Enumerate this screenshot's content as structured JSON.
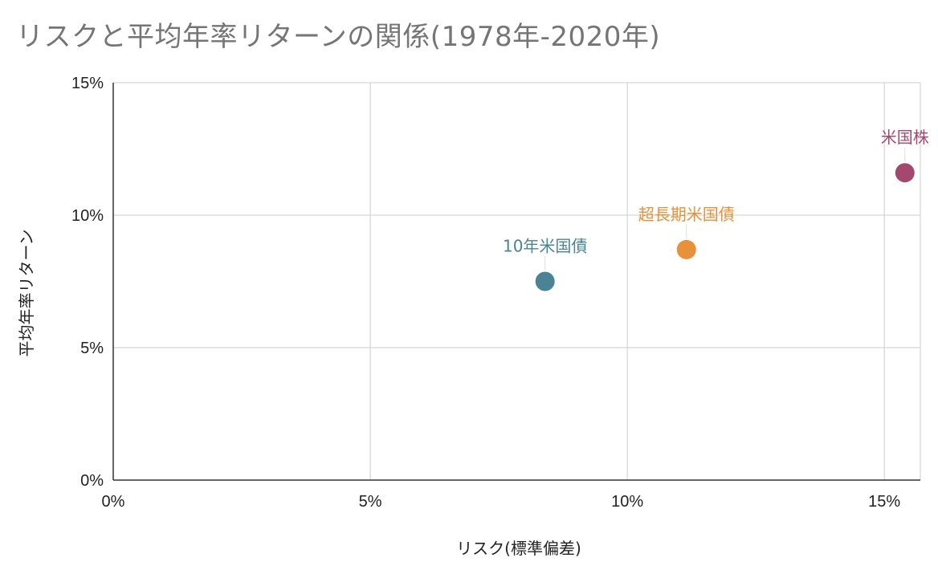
{
  "chart_data": {
    "type": "scatter",
    "title": "リスクと平均年率リターンの関係(1978年-2020年)",
    "xlabel": "リスク(標準偏差)",
    "ylabel": "平均年率リターン",
    "xlim": [
      0,
      15.7
    ],
    "ylim": [
      0,
      15
    ],
    "x_ticks": [
      "0%",
      "5%",
      "10%",
      "15%"
    ],
    "y_ticks": [
      "0%",
      "5%",
      "10%",
      "15%"
    ],
    "x_tick_values": [
      0,
      5,
      10,
      15
    ],
    "y_tick_values": [
      0,
      5,
      10,
      15
    ],
    "grid": true,
    "legend": "none",
    "points": [
      {
        "label": "10年米国債",
        "x": 8.4,
        "y": 7.5,
        "color": "#4a8494"
      },
      {
        "label": "超長期米国債",
        "x": 11.15,
        "y": 8.7,
        "color": "#e8913a"
      },
      {
        "label": "米国株",
        "x": 15.4,
        "y": 11.6,
        "color": "#a4486f"
      }
    ]
  }
}
